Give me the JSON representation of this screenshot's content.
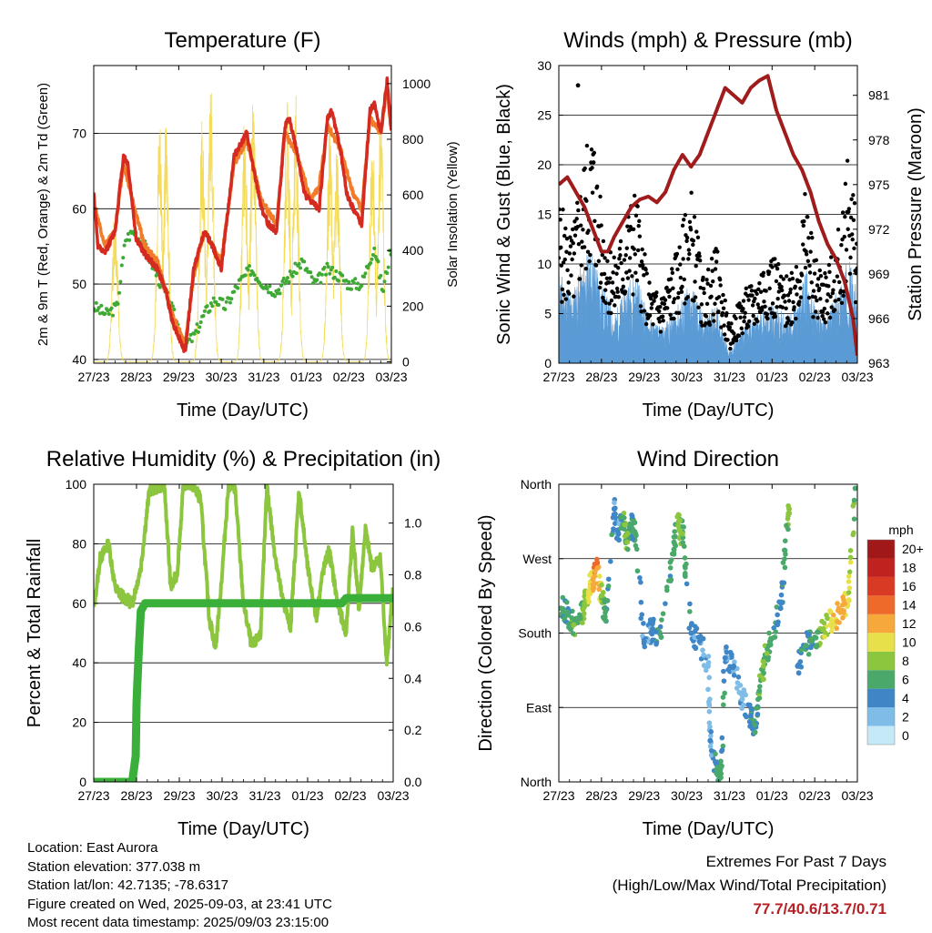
{
  "panels": {
    "temperature": {
      "title": "Temperature (F)",
      "ylabel_left": "2m & 9m T (Red, Orange) & 2m Td (Green)",
      "ylabel_right": "Solar Insolation (Yellow)",
      "xlabel": "Time (Day/UTC)"
    },
    "winds": {
      "title": "Winds (mph) & Pressure (mb)",
      "ylabel_left": "Sonic Wind & Gust (Blue, Black)",
      "ylabel_right": "Station Pressure (Maroon)",
      "xlabel": "Time (Day/UTC)"
    },
    "humidity": {
      "title": "Relative Humidity (%) & Precipitation (in)",
      "ylabel_left": "Percent & Total Rainfall",
      "xlabel": "Time (Day/UTC)"
    },
    "direction": {
      "title": "Wind Direction",
      "ylabel_left": "Direction (Colored By Speed)",
      "xlabel": "Time (Day/UTC)",
      "colorbar_title": "mph"
    }
  },
  "info": {
    "location": "Location: East Aurora",
    "elevation": "Station elevation: 377.038 m",
    "latlon": "Station lat/lon: 42.7135; -78.6317",
    "created": "Figure created on Wed, 2025-09-03, at 23:41 UTC",
    "recent": "Most recent data timestamp: 2025/09/03 23:15:00"
  },
  "extremes": {
    "line1": "Extremes For Past 7 Days",
    "line2": "(High/Low/Max Wind/Total Precipitation)",
    "values": "77.7/40.6/13.7/0.71"
  },
  "colors": {
    "temp_2m": "#d42a20",
    "temp_9m": "#f07c2a",
    "dewpoint": "#3fa935",
    "solar": "#f4dc5a",
    "wind": "#5b9bd5",
    "gust": "#000000",
    "pressure": "#a01c1c",
    "rh": "#8cc63f",
    "precip": "#3aaf3a"
  },
  "chart_data": [
    {
      "id": "temperature",
      "type": "line",
      "title": "Temperature (F)",
      "xlabel": "Time (Day/UTC)",
      "ylabel": "2m & 9m T (Red, Orange) & 2m Td (Green)",
      "ylabel_right": "Solar Insolation (Yellow)",
      "x_ticks": [
        "27/23",
        "28/23",
        "29/23",
        "30/23",
        "31/23",
        "01/23",
        "02/23",
        "03/23"
      ],
      "xlim": [
        0,
        7
      ],
      "ylim": [
        39.5,
        79
      ],
      "y_ticks": [
        40,
        50,
        60,
        70
      ],
      "ylim_right": [
        -5,
        1065
      ],
      "y_ticks_right": [
        0,
        200,
        400,
        600,
        800,
        1000
      ],
      "grid": "horizontal",
      "series": [
        {
          "name": "2m T",
          "color": "#d42a20",
          "x": [
            0,
            0.1,
            0.25,
            0.5,
            0.7,
            0.8,
            0.92,
            1.0,
            1.2,
            1.5,
            1.7,
            1.85,
            2.0,
            2.15,
            2.35,
            2.6,
            2.8,
            3.0,
            3.3,
            3.6,
            3.8,
            3.95,
            4.1,
            4.3,
            4.5,
            4.6,
            4.8,
            4.95,
            5.1,
            5.3,
            5.5,
            5.6,
            5.8,
            5.95,
            6.1,
            6.3,
            6.5,
            6.6,
            6.75,
            6.9,
            7.0
          ],
          "y": [
            62,
            55,
            54,
            57,
            67,
            66,
            60,
            56,
            54,
            52,
            49,
            45,
            43,
            41,
            52,
            57,
            55,
            52,
            67,
            70,
            64,
            60,
            58,
            57,
            71,
            72,
            67,
            62,
            61,
            60,
            72,
            73,
            68,
            62,
            60,
            58,
            73,
            74,
            70,
            77,
            70
          ]
        },
        {
          "name": "9m T",
          "color": "#f07c2a",
          "x": [
            0,
            0.25,
            0.5,
            0.7,
            0.92,
            1.2,
            1.5,
            1.85,
            2.15,
            2.35,
            2.6,
            3.0,
            3.3,
            3.6,
            3.95,
            4.3,
            4.5,
            4.8,
            5.1,
            5.3,
            5.5,
            5.8,
            6.1,
            6.3,
            6.5,
            6.75,
            6.9,
            7.0
          ],
          "y": [
            61,
            55,
            57,
            66,
            61,
            55,
            53,
            46,
            42,
            51,
            57,
            53,
            66,
            69,
            61,
            58,
            70,
            67,
            61,
            63,
            71,
            68,
            62,
            60,
            72,
            70,
            76,
            70
          ]
        },
        {
          "name": "2m Td",
          "color": "#3fa935",
          "x": [
            0,
            0.3,
            0.55,
            0.75,
            0.95,
            1.2,
            1.5,
            1.75,
            1.95,
            2.15,
            2.35,
            2.6,
            2.85,
            3.1,
            3.4,
            3.7,
            4.0,
            4.3,
            4.6,
            4.9,
            5.2,
            5.5,
            5.8,
            6.0,
            6.3,
            6.6,
            6.8,
            7.0
          ],
          "y": [
            47,
            46,
            47,
            56,
            57,
            55,
            51,
            48,
            45,
            42,
            43,
            46,
            48,
            47,
            50,
            52,
            50,
            49,
            51,
            53,
            50,
            52,
            51,
            50,
            50,
            55,
            49,
            55
          ]
        },
        {
          "name": "Solar Insolation",
          "color": "#f4dc5a",
          "axis": "right",
          "peaks_x": [
            0.5,
            1.55,
            1.7,
            2.55,
            2.75,
            3.55,
            3.75,
            4.55,
            4.75,
            5.55,
            5.72,
            6.55,
            6.75
          ],
          "peaks_y": [
            600,
            910,
            880,
            880,
            1040,
            900,
            1000,
            950,
            980,
            860,
            820,
            870,
            960
          ]
        }
      ]
    },
    {
      "id": "winds",
      "type": "scatter",
      "title": "Winds (mph) & Pressure (mb)",
      "xlabel": "Time (Day/UTC)",
      "ylabel": "Sonic Wind & Gust (Blue, Black)",
      "ylabel_right": "Station Pressure (Maroon)",
      "x_ticks": [
        "27/23",
        "28/23",
        "29/23",
        "30/23",
        "31/23",
        "01/23",
        "02/23",
        "03/23"
      ],
      "xlim": [
        0,
        7
      ],
      "ylim": [
        0,
        30
      ],
      "y_ticks": [
        0,
        5,
        10,
        15,
        20,
        25,
        30
      ],
      "ylim_right": [
        963,
        983
      ],
      "y_ticks_right": [
        963,
        966,
        969,
        972,
        975,
        978,
        981
      ],
      "grid": "horizontal",
      "series": [
        {
          "name": "Gust",
          "color": "#000000",
          "x": [
            0,
            0.3,
            0.6,
            0.8,
            1.0,
            1.3,
            1.6,
            1.8,
            2.1,
            2.4,
            2.8,
            3.1,
            3.4,
            3.7,
            4.0,
            4.3,
            4.6,
            4.9,
            5.1,
            5.3,
            5.6,
            5.8,
            6.0,
            6.3,
            6.6,
            6.8,
            7.0
          ],
          "y": [
            14,
            11,
            18,
            21,
            13,
            9,
            13,
            15,
            7,
            6,
            10,
            15,
            7,
            10,
            3,
            6,
            7,
            10,
            9,
            7,
            10,
            15,
            9,
            8,
            12,
            19,
            11
          ]
        },
        {
          "name": "Wind",
          "color": "#5b9bd5",
          "x": [
            0,
            0.3,
            0.6,
            0.8,
            1.0,
            1.3,
            1.6,
            1.8,
            2.1,
            2.4,
            2.8,
            3.1,
            3.4,
            3.7,
            4.0,
            4.3,
            4.6,
            4.9,
            5.1,
            5.3,
            5.6,
            5.8,
            6.0,
            6.3,
            6.6,
            6.8,
            7.0
          ],
          "y": [
            8,
            6,
            9,
            10,
            7,
            4,
            7,
            8,
            4,
            3,
            5,
            7,
            4,
            5,
            1,
            3,
            4,
            5,
            5,
            4,
            5,
            8,
            5,
            4,
            7,
            9,
            6
          ]
        },
        {
          "name": "Station Pressure",
          "color": "#a01c1c",
          "axis": "right",
          "x": [
            0,
            0.2,
            0.4,
            0.6,
            0.8,
            1.0,
            1.15,
            1.3,
            1.5,
            1.7,
            1.9,
            2.1,
            2.3,
            2.5,
            2.7,
            2.9,
            3.1,
            3.3,
            3.5,
            3.7,
            3.9,
            4.1,
            4.3,
            4.5,
            4.7,
            4.9,
            5.1,
            5.3,
            5.5,
            5.7,
            5.9,
            6.1,
            6.3,
            6.5,
            6.7,
            6.9,
            7.0
          ],
          "y": [
            975,
            975.5,
            974.5,
            973.5,
            972,
            970.5,
            970.5,
            971.5,
            972.5,
            973.5,
            974,
            974.2,
            973.8,
            974.5,
            976,
            977,
            976.2,
            977,
            978.5,
            980,
            981.5,
            981,
            980.5,
            981.5,
            982,
            982.3,
            980,
            978.5,
            977,
            976,
            974.5,
            972.5,
            971,
            970,
            968.5,
            966,
            963.5
          ]
        }
      ]
    },
    {
      "id": "humidity",
      "type": "line",
      "title": "Relative Humidity (%) & Precipitation (in)",
      "xlabel": "Time (Day/UTC)",
      "ylabel": "Percent & Total Rainfall",
      "x_ticks": [
        "27/23",
        "28/23",
        "29/23",
        "30/23",
        "31/23",
        "01/23",
        "02/23",
        "03/23"
      ],
      "xlim": [
        0,
        7
      ],
      "ylim": [
        0,
        100
      ],
      "y_ticks": [
        0,
        20,
        40,
        60,
        80,
        100
      ],
      "ylim_right": [
        0,
        1.15
      ],
      "y_ticks_right": [
        0.0,
        0.2,
        0.4,
        0.6,
        0.8,
        1.0
      ],
      "grid": "horizontal",
      "series": [
        {
          "name": "RH",
          "color": "#8cc63f",
          "x": [
            0,
            0.15,
            0.35,
            0.5,
            0.7,
            0.9,
            1.1,
            1.3,
            1.5,
            1.65,
            1.8,
            1.95,
            2.1,
            2.3,
            2.5,
            2.7,
            2.85,
            3.0,
            3.15,
            3.3,
            3.5,
            3.7,
            3.9,
            4.05,
            4.2,
            4.4,
            4.6,
            4.8,
            5.0,
            5.2,
            5.35,
            5.5,
            5.7,
            5.9,
            6.05,
            6.2,
            6.35,
            6.5,
            6.7,
            6.85,
            7.0
          ],
          "y": [
            58,
            75,
            80,
            65,
            62,
            60,
            72,
            98,
            99,
            100,
            65,
            70,
            100,
            100,
            95,
            55,
            45,
            70,
            100,
            99,
            60,
            45,
            50,
            100,
            80,
            62,
            52,
            98,
            72,
            55,
            70,
            78,
            60,
            50,
            85,
            58,
            85,
            72,
            75,
            40,
            65
          ]
        },
        {
          "name": "Total Rainfall",
          "color": "#3aaf3a",
          "axis": "right",
          "x": [
            0,
            0.9,
            0.98,
            1.0,
            1.05,
            1.1,
            1.2,
            2.0,
            3.0,
            4.0,
            5.0,
            5.8,
            5.9,
            6.0,
            7.0
          ],
          "y": [
            0,
            0,
            0.1,
            0.3,
            0.5,
            0.66,
            0.69,
            0.69,
            0.69,
            0.69,
            0.69,
            0.69,
            0.71,
            0.71,
            0.71
          ]
        }
      ]
    },
    {
      "id": "direction",
      "type": "scatter",
      "title": "Wind Direction",
      "xlabel": "Time (Day/UTC)",
      "ylabel": "Direction (Colored By Speed)",
      "x_ticks": [
        "27/23",
        "28/23",
        "29/23",
        "30/23",
        "31/23",
        "01/23",
        "02/23",
        "03/23"
      ],
      "xlim": [
        0,
        7
      ],
      "ylim": [
        0,
        360
      ],
      "y_tick_labels": [
        "North",
        "East",
        "South",
        "West",
        "North"
      ],
      "y_ticks": [
        0,
        90,
        180,
        270,
        360
      ],
      "grid": "horizontal",
      "colorbar": {
        "title": "mph",
        "labels": [
          "0",
          "2",
          "4",
          "6",
          "8",
          "10",
          "12",
          "14",
          "16",
          "18",
          "20+"
        ],
        "colors": [
          "#c6e9f8",
          "#7fbde8",
          "#3f86c6",
          "#4aa86a",
          "#8cc63f",
          "#e8e04a",
          "#f6a93a",
          "#ee6a2a",
          "#d93a24",
          "#c0231f",
          "#a11818"
        ]
      },
      "points": [
        {
          "x": 0.05,
          "y": 210,
          "s": 6
        },
        {
          "x": 0.2,
          "y": 205,
          "s": 5
        },
        {
          "x": 0.35,
          "y": 190,
          "s": 7
        },
        {
          "x": 0.5,
          "y": 200,
          "s": 6
        },
        {
          "x": 0.6,
          "y": 215,
          "s": 8
        },
        {
          "x": 0.7,
          "y": 230,
          "s": 10
        },
        {
          "x": 0.8,
          "y": 245,
          "s": 12
        },
        {
          "x": 0.9,
          "y": 265,
          "s": 14
        },
        {
          "x": 1.0,
          "y": 225,
          "s": 8
        },
        {
          "x": 1.1,
          "y": 195,
          "s": 5
        },
        {
          "x": 1.3,
          "y": 330,
          "s": 4
        },
        {
          "x": 1.4,
          "y": 300,
          "s": 3
        },
        {
          "x": 1.5,
          "y": 320,
          "s": 6
        },
        {
          "x": 1.6,
          "y": 290,
          "s": 7
        },
        {
          "x": 1.7,
          "y": 310,
          "s": 5
        },
        {
          "x": 1.8,
          "y": 300,
          "s": 6
        },
        {
          "x": 2.0,
          "y": 170,
          "s": 3
        },
        {
          "x": 2.2,
          "y": 185,
          "s": 4
        },
        {
          "x": 2.4,
          "y": 175,
          "s": 5
        },
        {
          "x": 2.7,
          "y": 290,
          "s": 6
        },
        {
          "x": 2.8,
          "y": 310,
          "s": 8
        },
        {
          "x": 2.9,
          "y": 300,
          "s": 7
        },
        {
          "x": 3.1,
          "y": 180,
          "s": 4
        },
        {
          "x": 3.3,
          "y": 170,
          "s": 3
        },
        {
          "x": 3.5,
          "y": 140,
          "s": 2
        },
        {
          "x": 3.55,
          "y": 50,
          "s": 3
        },
        {
          "x": 3.7,
          "y": 15,
          "s": 5
        },
        {
          "x": 3.8,
          "y": 10,
          "s": 6
        },
        {
          "x": 3.9,
          "y": 150,
          "s": 4
        },
        {
          "x": 4.1,
          "y": 140,
          "s": 3
        },
        {
          "x": 4.3,
          "y": 100,
          "s": 2
        },
        {
          "x": 4.5,
          "y": 80,
          "s": 4
        },
        {
          "x": 4.6,
          "y": 60,
          "s": 5
        },
        {
          "x": 4.7,
          "y": 110,
          "s": 6
        },
        {
          "x": 4.8,
          "y": 140,
          "s": 7
        },
        {
          "x": 4.95,
          "y": 170,
          "s": 6
        },
        {
          "x": 5.2,
          "y": 210,
          "s": 4
        },
        {
          "x": 5.3,
          "y": 280,
          "s": 6
        },
        {
          "x": 5.4,
          "y": 330,
          "s": 8
        },
        {
          "x": 5.6,
          "y": 140,
          "s": 4
        },
        {
          "x": 5.8,
          "y": 165,
          "s": 5
        },
        {
          "x": 6.0,
          "y": 175,
          "s": 6
        },
        {
          "x": 6.2,
          "y": 185,
          "s": 8
        },
        {
          "x": 6.4,
          "y": 195,
          "s": 10
        },
        {
          "x": 6.6,
          "y": 205,
          "s": 12
        },
        {
          "x": 6.8,
          "y": 220,
          "s": 10
        },
        {
          "x": 6.95,
          "y": 355,
          "s": 6
        }
      ]
    }
  ]
}
